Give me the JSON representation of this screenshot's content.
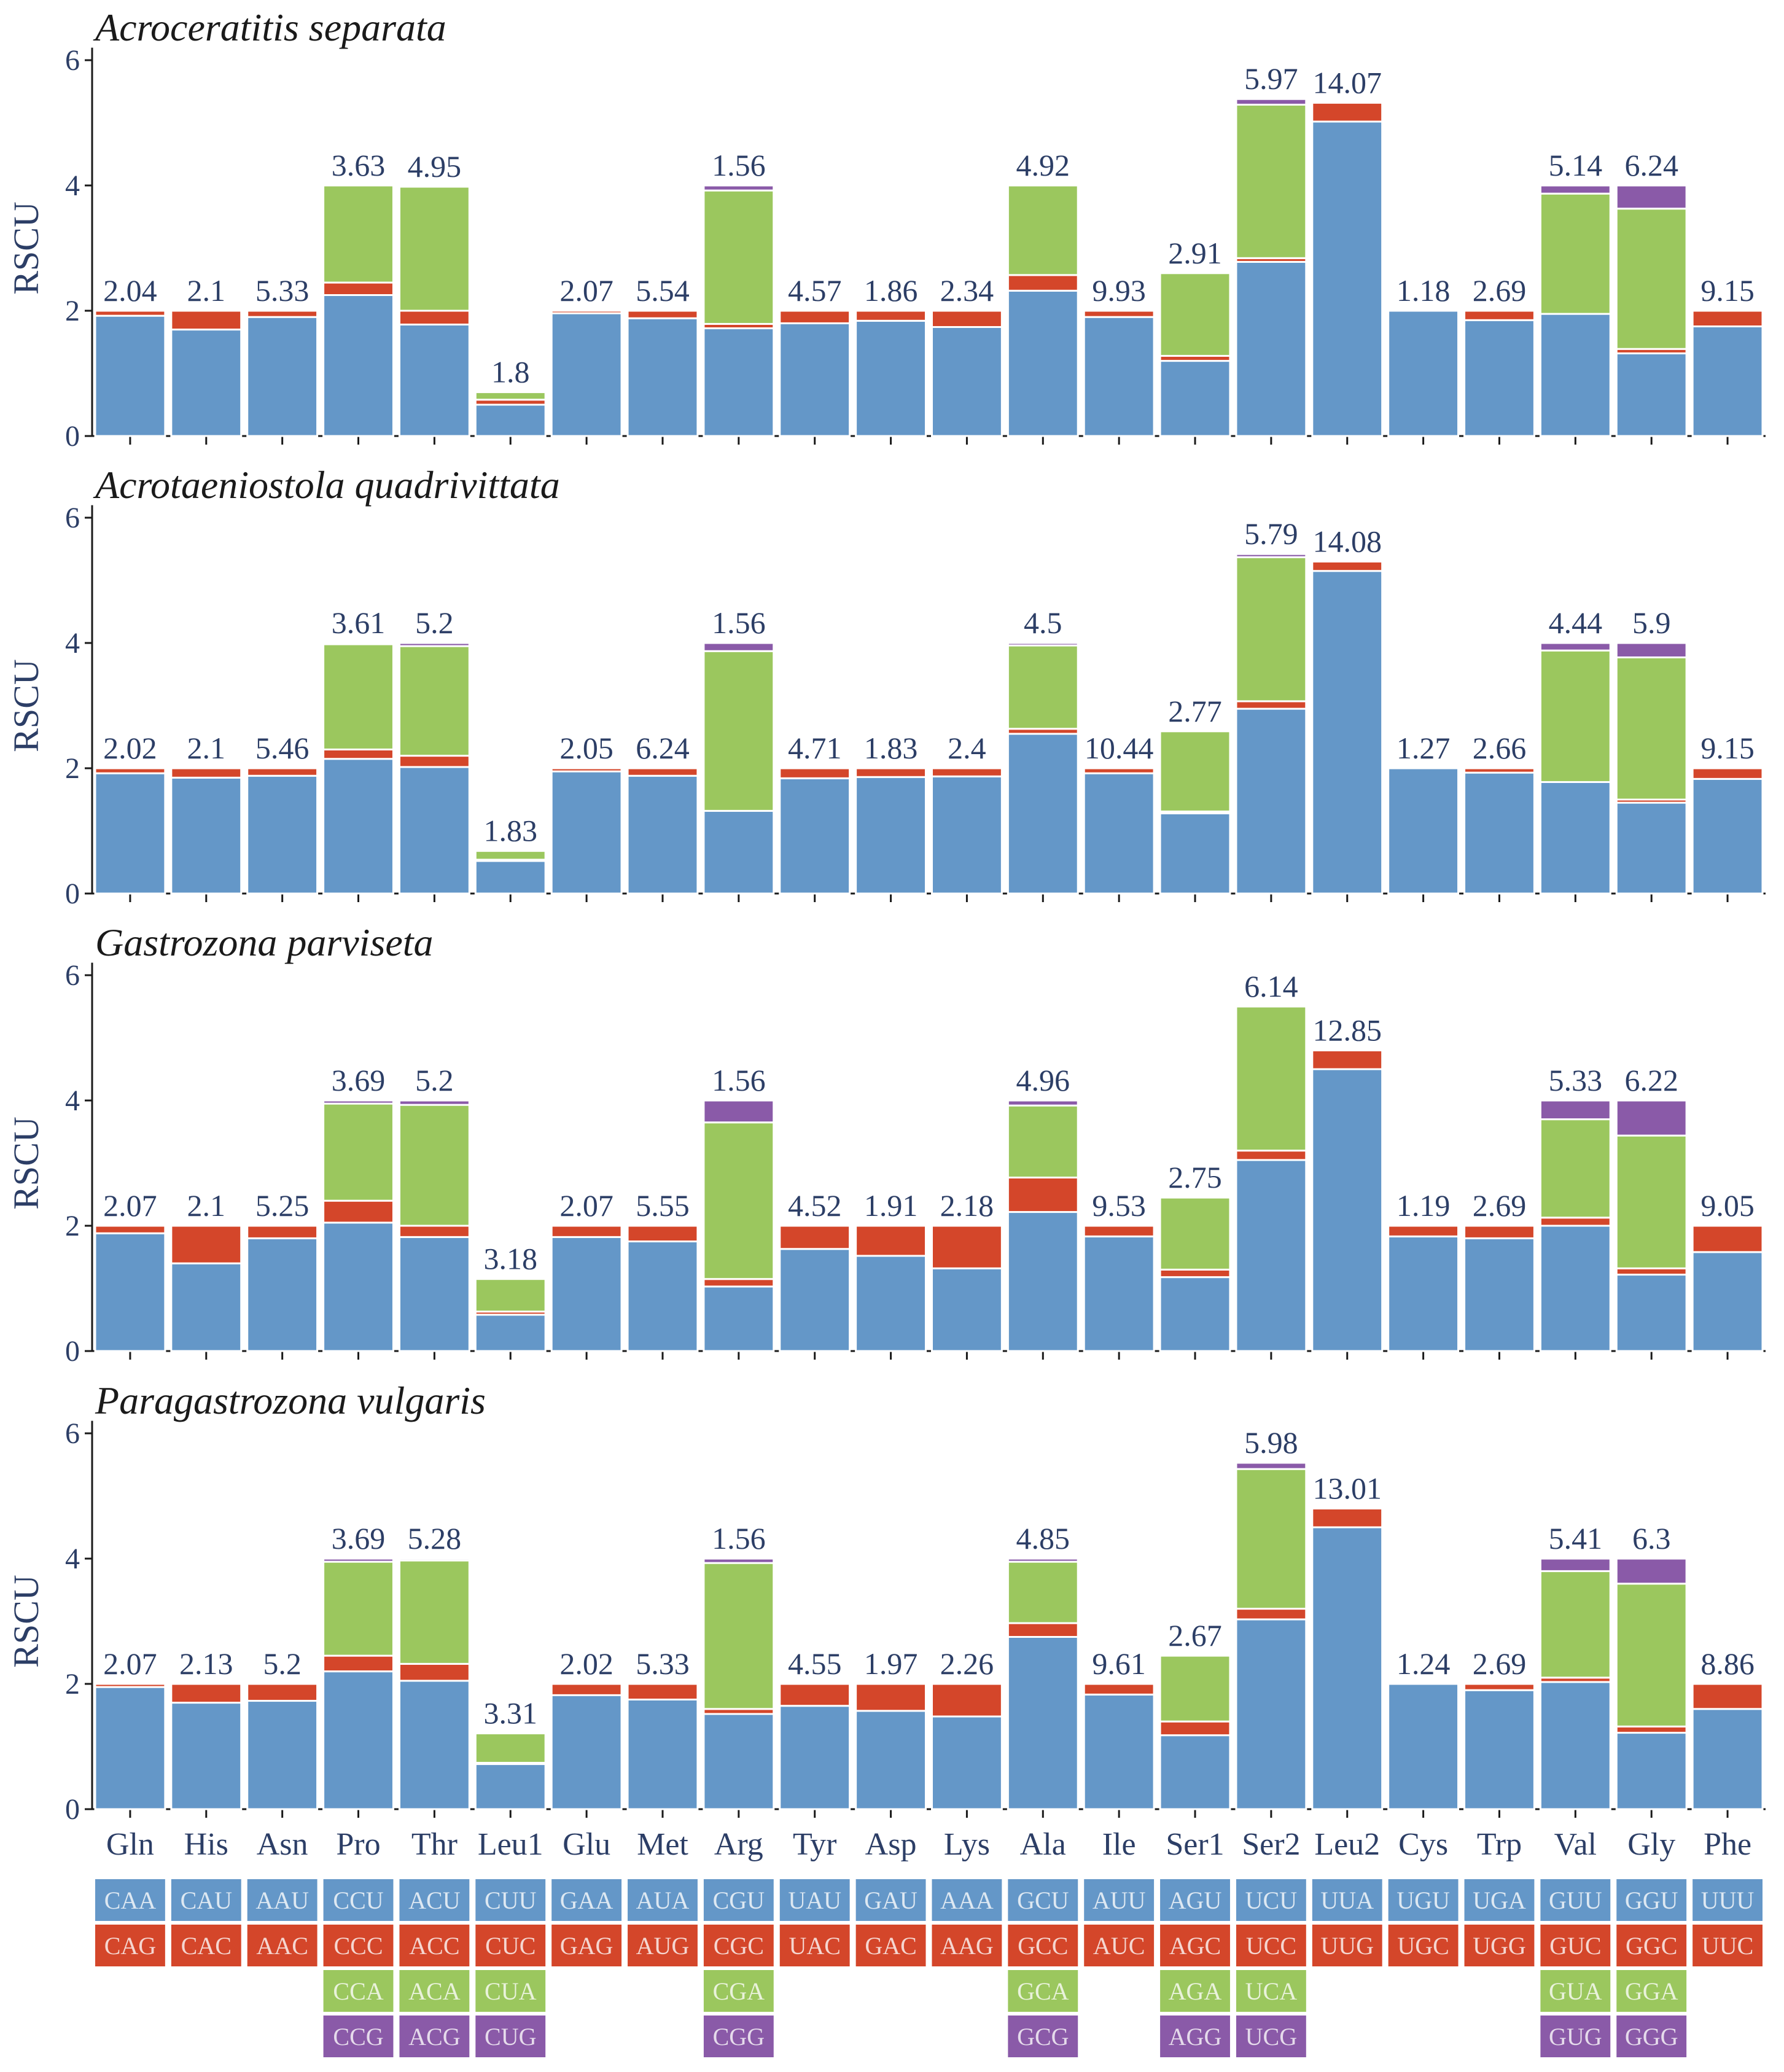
{
  "chart_data": {
    "type": "bar",
    "stacked": true,
    "ylabel": "RSCU",
    "ylim": [
      0,
      6
    ],
    "yticks": [
      0,
      2,
      4,
      6
    ],
    "categories": [
      "Gln",
      "His",
      "Asn",
      "Pro",
      "Thr",
      "Leu1",
      "Glu",
      "Met",
      "Arg",
      "Tyr",
      "Asp",
      "Lys",
      "Ala",
      "Ile",
      "Ser1",
      "Ser2",
      "Leu2",
      "Cys",
      "Trp",
      "Val",
      "Gly",
      "Phe"
    ],
    "colors": [
      "#6497c8",
      "#d4462a",
      "#9bc75e",
      "#8a5aa8"
    ],
    "codons": [
      [
        "CAA",
        "CAG"
      ],
      [
        "CAU",
        "CAC"
      ],
      [
        "AAU",
        "AAC"
      ],
      [
        "CCU",
        "CCC",
        "CCA",
        "CCG"
      ],
      [
        "ACU",
        "ACC",
        "ACA",
        "ACG"
      ],
      [
        "CUU",
        "CUC",
        "CUA",
        "CUG"
      ],
      [
        "GAA",
        "GAG"
      ],
      [
        "AUA",
        "AUG"
      ],
      [
        "CGU",
        "CGC",
        "CGA",
        "CGG"
      ],
      [
        "UAU",
        "UAC"
      ],
      [
        "GAU",
        "GAC"
      ],
      [
        "AAA",
        "AAG"
      ],
      [
        "GCU",
        "GCC",
        "GCA",
        "GCG"
      ],
      [
        "AUU",
        "AUC"
      ],
      [
        "AGU",
        "AGC",
        "AGA",
        "AGG"
      ],
      [
        "UCU",
        "UCC",
        "UCA",
        "UCG"
      ],
      [
        "UUA",
        "UUG"
      ],
      [
        "UGU",
        "UGC"
      ],
      [
        "UGA",
        "UGG"
      ],
      [
        "GUU",
        "GUC",
        "GUA",
        "GUG"
      ],
      [
        "GGU",
        "GGC",
        "GGA",
        "GGG"
      ],
      [
        "UUU",
        "UUC"
      ]
    ],
    "panels": [
      {
        "title": "Acroceratitis separata",
        "labels": [
          "2.04",
          "2.1",
          "5.33",
          "3.63",
          "4.95",
          "1.8",
          "2.07",
          "5.54",
          "1.56",
          "4.57",
          "1.86",
          "2.34",
          "4.92",
          "9.93",
          "2.91",
          "5.97",
          "14.07",
          "1.18",
          "2.69",
          "5.14",
          "6.24",
          "9.15"
        ],
        "stacks": [
          [
            1.92,
            0.08
          ],
          [
            1.7,
            0.3
          ],
          [
            1.9,
            0.1
          ],
          [
            2.25,
            0.2,
            1.55,
            0.0
          ],
          [
            1.78,
            0.22,
            1.98,
            0.0
          ],
          [
            0.5,
            0.08,
            0.12,
            0.0
          ],
          [
            1.96,
            0.04
          ],
          [
            1.88,
            0.12
          ],
          [
            1.72,
            0.07,
            2.13,
            0.08
          ],
          [
            1.8,
            0.2
          ],
          [
            1.84,
            0.16
          ],
          [
            1.74,
            0.26
          ],
          [
            2.32,
            0.25,
            1.43,
            0.0
          ],
          [
            1.9,
            0.1
          ],
          [
            1.2,
            0.08,
            1.32,
            0.0
          ],
          [
            2.78,
            0.06,
            2.45,
            0.09
          ],
          [
            5.02,
            0.3
          ],
          [
            2.0,
            0.0
          ],
          [
            1.85,
            0.15
          ],
          [
            1.95,
            0.0,
            1.92,
            0.13
          ],
          [
            1.32,
            0.07,
            2.24,
            0.37
          ],
          [
            1.75,
            0.25
          ]
        ]
      },
      {
        "title": "Acrotaeniostola quadrivittata",
        "labels": [
          "2.02",
          "2.1",
          "5.46",
          "3.61",
          "5.2",
          "1.83",
          "2.05",
          "6.24",
          "1.56",
          "4.71",
          "1.83",
          "2.4",
          "4.5",
          "10.44",
          "2.77",
          "5.79",
          "14.08",
          "1.27",
          "2.66",
          "4.44",
          "5.9",
          "9.15"
        ],
        "stacks": [
          [
            1.92,
            0.08
          ],
          [
            1.85,
            0.15
          ],
          [
            1.88,
            0.12
          ],
          [
            2.15,
            0.15,
            1.68,
            0.02
          ],
          [
            2.02,
            0.18,
            1.75,
            0.05
          ],
          [
            0.52,
            0.02,
            0.14,
            0.0
          ],
          [
            1.95,
            0.05
          ],
          [
            1.88,
            0.12
          ],
          [
            1.32,
            0.0,
            2.55,
            0.13
          ],
          [
            1.84,
            0.16
          ],
          [
            1.86,
            0.14
          ],
          [
            1.87,
            0.13
          ],
          [
            2.55,
            0.08,
            1.33,
            0.04
          ],
          [
            1.92,
            0.08
          ],
          [
            1.28,
            0.03,
            1.28,
            0.0
          ],
          [
            2.95,
            0.12,
            2.3,
            0.05
          ],
          [
            5.15,
            0.15
          ],
          [
            2.0,
            0.0
          ],
          [
            1.93,
            0.07
          ],
          [
            1.78,
            0.0,
            2.1,
            0.12
          ],
          [
            1.45,
            0.05,
            2.27,
            0.23
          ],
          [
            1.83,
            0.17
          ]
        ]
      },
      {
        "title": "Gastrozona parviseta",
        "labels": [
          "2.07",
          "2.1",
          "5.25",
          "3.69",
          "5.2",
          "3.18",
          "2.07",
          "5.55",
          "1.56",
          "4.52",
          "1.91",
          "2.18",
          "4.96",
          "9.53",
          "2.75",
          "6.14",
          "12.85",
          "1.19",
          "2.69",
          "5.33",
          "6.22",
          "9.05"
        ],
        "stacks": [
          [
            1.88,
            0.12
          ],
          [
            1.4,
            0.6
          ],
          [
            1.8,
            0.2
          ],
          [
            2.05,
            0.35,
            1.55,
            0.05
          ],
          [
            1.82,
            0.18,
            1.93,
            0.07
          ],
          [
            0.58,
            0.05,
            0.52,
            0.0
          ],
          [
            1.82,
            0.18
          ],
          [
            1.75,
            0.25
          ],
          [
            1.03,
            0.12,
            2.5,
            0.35
          ],
          [
            1.63,
            0.37
          ],
          [
            1.52,
            0.48
          ],
          [
            1.32,
            0.68
          ],
          [
            2.22,
            0.55,
            1.15,
            0.08
          ],
          [
            1.83,
            0.17
          ],
          [
            1.18,
            0.12,
            1.15,
            0.0
          ],
          [
            3.05,
            0.15,
            2.3,
            0.0
          ],
          [
            4.5,
            0.3
          ],
          [
            1.83,
            0.17
          ],
          [
            1.8,
            0.2
          ],
          [
            2.0,
            0.13,
            1.57,
            0.3
          ],
          [
            1.22,
            0.1,
            2.12,
            0.56
          ],
          [
            1.58,
            0.42
          ]
        ]
      },
      {
        "title": "Paragastrozona vulgaris",
        "labels": [
          "2.07",
          "2.13",
          "5.2",
          "3.69",
          "5.28",
          "3.31",
          "2.02",
          "5.33",
          "1.56",
          "4.55",
          "1.97",
          "2.26",
          "4.85",
          "9.61",
          "2.67",
          "5.98",
          "13.01",
          "1.24",
          "2.69",
          "5.41",
          "6.3",
          "8.86"
        ],
        "stacks": [
          [
            1.95,
            0.05
          ],
          [
            1.7,
            0.3
          ],
          [
            1.73,
            0.27
          ],
          [
            2.2,
            0.25,
            1.5,
            0.05
          ],
          [
            2.05,
            0.27,
            1.65,
            0.03
          ],
          [
            0.72,
            0.02,
            0.47,
            0.0
          ],
          [
            1.82,
            0.18
          ],
          [
            1.75,
            0.25
          ],
          [
            1.52,
            0.08,
            2.33,
            0.07
          ],
          [
            1.65,
            0.35
          ],
          [
            1.57,
            0.43
          ],
          [
            1.48,
            0.52
          ],
          [
            2.75,
            0.22,
            0.98,
            0.05
          ],
          [
            1.83,
            0.17
          ],
          [
            1.18,
            0.22,
            1.05,
            0.0
          ],
          [
            3.03,
            0.17,
            2.23,
            0.1
          ],
          [
            4.5,
            0.3
          ],
          [
            2.0,
            0.0
          ],
          [
            1.9,
            0.1
          ],
          [
            2.03,
            0.07,
            1.7,
            0.2
          ],
          [
            1.22,
            0.1,
            2.28,
            0.4
          ],
          [
            1.6,
            0.4
          ]
        ]
      }
    ]
  }
}
